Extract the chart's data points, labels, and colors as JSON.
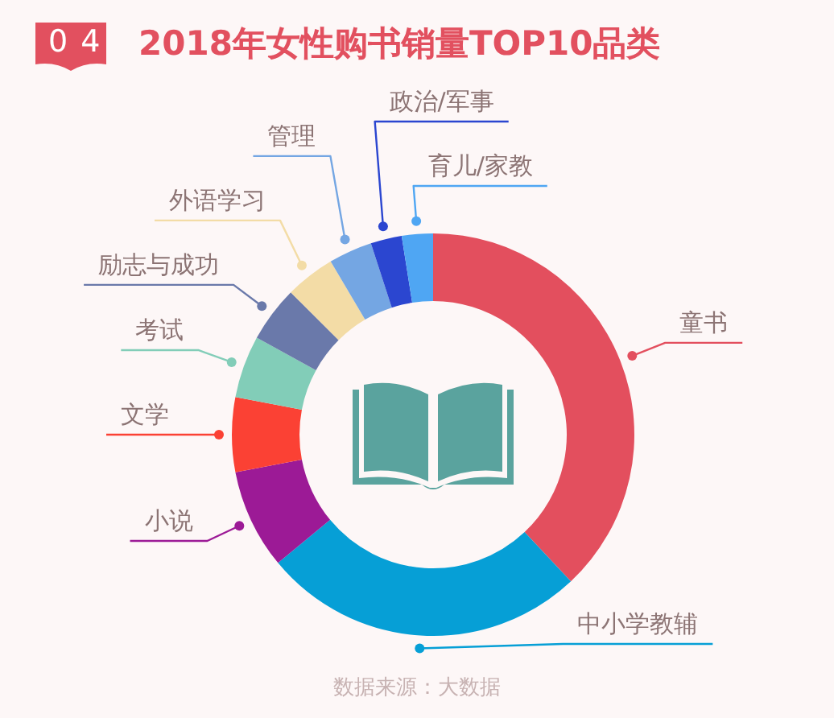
{
  "chart_data": {
    "type": "donut",
    "title": "2018年女性购书销量TOP10品类",
    "categories": [
      "童书",
      "中小学教辅",
      "小说",
      "文学",
      "考试",
      "励志与成功",
      "外语学习",
      "管理",
      "政治/军事",
      "育儿/家教"
    ],
    "values": [
      38,
      26,
      8,
      6,
      5,
      4.5,
      4,
      3.5,
      2.5,
      2.5
    ],
    "colors": [
      "#e34f5e",
      "#069fd6",
      "#9c1a96",
      "#fb4134",
      "#82cdb8",
      "#6a79aa",
      "#f3dca6",
      "#74a6e3",
      "#2b46d0",
      "#4fa6f3"
    ],
    "annotations": [
      "04",
      "数据来源：大数据"
    ]
  }
}
